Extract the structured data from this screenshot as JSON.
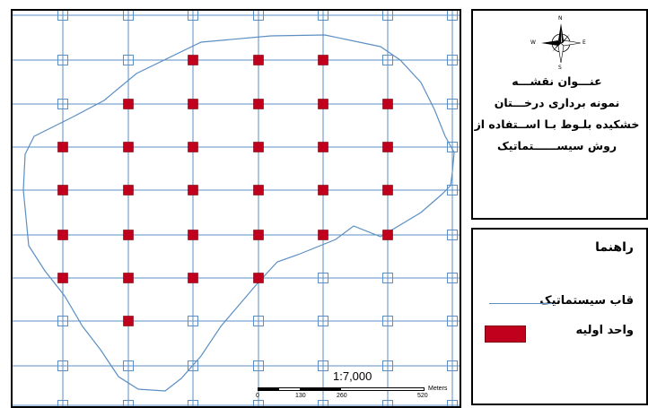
{
  "map": {
    "grid_color": "#5b8fc4",
    "unit_color": "#c0001c",
    "boundary_color": "#5b8fc4"
  },
  "title_panel": {
    "lines": [
      "عنـــوان نقشـــه",
      "نمونه برداری درخـــتان",
      "خشکیده بلـوط بـا اســتفاده از",
      "روش سیســــــتماتیک"
    ],
    "compass": {
      "n": "N",
      "s": "S",
      "e": "E",
      "w": "W"
    }
  },
  "legend": {
    "title": "راهنما",
    "items": [
      {
        "label": "قاب سیستماتیک",
        "icon": "blue-line"
      },
      {
        "label": "واحد اولیه",
        "icon": "red-square"
      }
    ]
  },
  "scale": {
    "ratio": "1:7,000",
    "ticks": [
      "0",
      "130",
      "260",
      "520"
    ],
    "unit": "Meters"
  }
}
